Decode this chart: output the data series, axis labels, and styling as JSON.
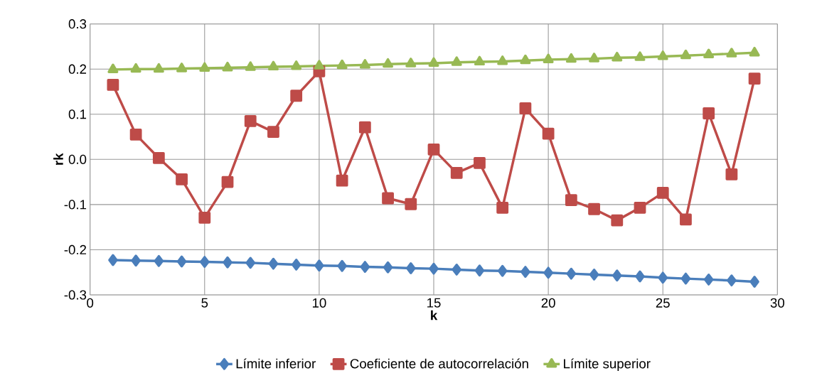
{
  "chart_data": {
    "type": "line",
    "xlabel": "k",
    "ylabel": "rk",
    "x": [
      1,
      2,
      3,
      4,
      5,
      6,
      7,
      8,
      9,
      10,
      11,
      12,
      13,
      14,
      15,
      16,
      17,
      18,
      19,
      20,
      21,
      22,
      23,
      24,
      25,
      26,
      27,
      28,
      29
    ],
    "series": [
      {
        "name": "Límite inferior",
        "color": "#4a7ebb",
        "marker": "diamond",
        "values": [
          -0.223,
          -0.224,
          -0.225,
          -0.226,
          -0.227,
          -0.228,
          -0.229,
          -0.231,
          -0.233,
          -0.235,
          -0.236,
          -0.238,
          -0.239,
          -0.241,
          -0.242,
          -0.244,
          -0.246,
          -0.247,
          -0.249,
          -0.251,
          -0.253,
          -0.255,
          -0.257,
          -0.259,
          -0.262,
          -0.264,
          -0.266,
          -0.268,
          -0.271
        ]
      },
      {
        "name": "Coeficiente de autocorrelación",
        "color": "#be4b48",
        "marker": "square",
        "values": [
          0.165,
          0.055,
          0.003,
          -0.044,
          -0.129,
          -0.05,
          0.085,
          0.061,
          0.141,
          0.195,
          -0.047,
          0.071,
          -0.086,
          -0.099,
          0.022,
          -0.03,
          -0.008,
          -0.107,
          0.113,
          0.057,
          -0.09,
          -0.11,
          -0.135,
          -0.107,
          -0.074,
          -0.133,
          0.102,
          -0.033,
          0.179
        ]
      },
      {
        "name": "Límite superior",
        "color": "#98b954",
        "marker": "triangle",
        "values": [
          0.199,
          0.2,
          0.2,
          0.201,
          0.202,
          0.203,
          0.204,
          0.205,
          0.206,
          0.207,
          0.208,
          0.209,
          0.211,
          0.212,
          0.213,
          0.215,
          0.216,
          0.217,
          0.219,
          0.221,
          0.222,
          0.223,
          0.225,
          0.226,
          0.228,
          0.23,
          0.232,
          0.234,
          0.236
        ]
      }
    ],
    "xlim": [
      0,
      30
    ],
    "xticks": [
      0,
      5,
      10,
      15,
      20,
      25,
      30
    ],
    "ylim": [
      -0.3,
      0.3
    ],
    "yticks": [
      -0.3,
      -0.2,
      -0.1,
      {
        "value": 0,
        "label": "0.0"
      },
      0.1,
      0.2,
      0.3
    ],
    "grid": true,
    "legend": "bottom"
  }
}
